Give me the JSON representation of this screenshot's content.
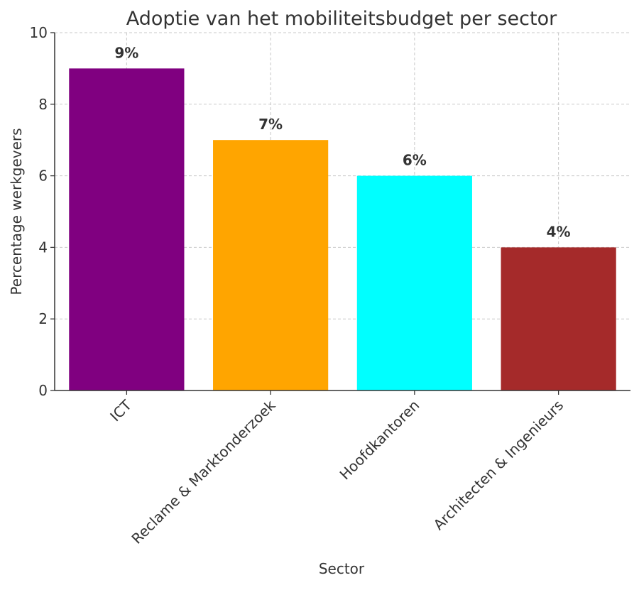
{
  "chart_data": {
    "type": "bar",
    "title": "Adoptie van het mobiliteitsbudget per sector",
    "xlabel": "Sector",
    "ylabel": "Percentage werkgevers",
    "categories": [
      "ICT",
      "Reclame & Marktonderzoek",
      "Hoofdkantoren",
      "Architecten & Ingenieurs"
    ],
    "values": [
      9,
      7,
      6,
      4
    ],
    "data_labels": [
      "9%",
      "7%",
      "6%",
      "4%"
    ],
    "bar_colors": [
      "#800080",
      "#FFA500",
      "#00FFFF",
      "#A52A2A"
    ],
    "ylim": [
      0,
      10
    ],
    "yticks": [
      0,
      2,
      4,
      6,
      8,
      10
    ],
    "grid": true,
    "legend": "none"
  }
}
